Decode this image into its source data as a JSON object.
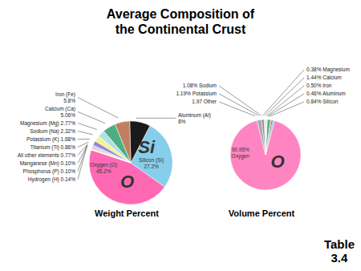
{
  "title": "Average Composition of\nthe Continental Crust",
  "annotations": [
    "Table\n3.4"
  ],
  "chart_data": [
    {
      "type": "pie",
      "xlabel": "Weight Percent",
      "categories": [
        "Oxygen (O)\n45.2%",
        "Silicon (Si)\n27.2%",
        "Aluminum (Al)\n8%",
        "Iron (Fe)\n5.8%",
        "Calcium (Ca)\n5.06%",
        "Magnesium (Mg) 2.77%",
        "Sodium (Na) 2.32%",
        "Potassium (K) 1.68%",
        "Titanium (Ti) 0.86%",
        "All other elements 0.77%",
        "Manganese (Mn) 0.10%",
        "Phosphorus (P) 0.10%",
        "Hydrogen (H) 0.14%"
      ],
      "values": [
        45.2,
        27.2,
        8.0,
        5.8,
        5.06,
        2.77,
        2.32,
        1.68,
        0.86,
        0.77,
        0.1,
        0.1,
        0.14
      ],
      "colors": [
        "#FF69B4",
        "#87CEEB",
        "#1a1a1a",
        "#C08060",
        "#4CAF82",
        "#B0E0E6",
        "#F5F590",
        "#9B7FD4",
        "#ADD8E6",
        "#FFB6C1",
        "#D3D3D3",
        "#FFA500",
        "#FFFFFF"
      ],
      "annotations": [
        "O",
        "Si"
      ]
    },
    {
      "type": "pie",
      "xlabel": "Volume Percent",
      "categories": [
        "90.95%\nOxygen",
        "0.84% Silicon",
        "0.46% Aluminum",
        "0.50% Iron",
        "1.44% Calcium",
        "0.38% Magnesium",
        "1.08% Sodium",
        "1.19% Potassium",
        "1.97 Other"
      ],
      "values": [
        90.95,
        0.84,
        0.46,
        0.5,
        1.44,
        0.38,
        1.08,
        1.19,
        1.97
      ],
      "colors": [
        "#FF85C2",
        "#87CEEB",
        "#1a1a1a",
        "#C08060",
        "#4CAF82",
        "#B0E0E6",
        "#F5F590",
        "#9B7FD4",
        "#A9A9A9"
      ],
      "annotations": [
        "O"
      ]
    }
  ]
}
